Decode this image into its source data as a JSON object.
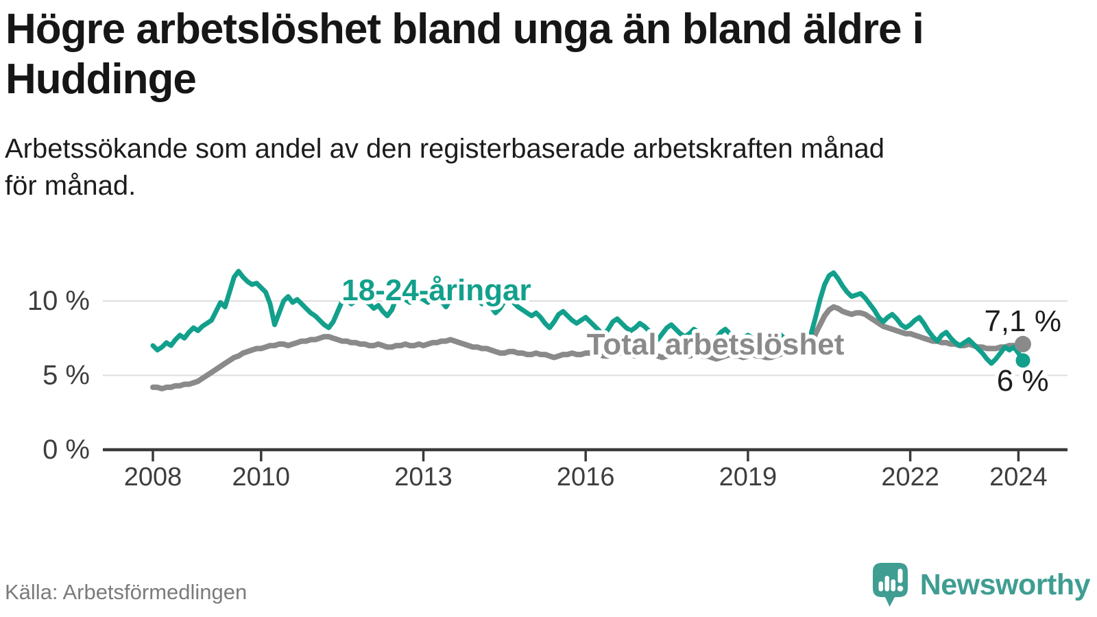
{
  "chart_data": {
    "type": "line",
    "title": "Högre arbetslöshet bland unga än bland äldre i\nHuddinge",
    "subtitle": "Arbetssökande som andel av den registerbaserade arbetskraften månad\nför månad.",
    "frequency": "monthly",
    "x_start": "2008-01",
    "x_end": "2024-02",
    "xlim": [
      2007.1,
      2024.9
    ],
    "ylim": [
      0,
      12.5
    ],
    "grid": "horizontal-only",
    "legend_position": "inline-labels",
    "y_ticks": [
      {
        "value": 0,
        "label": "0 %"
      },
      {
        "value": 5,
        "label": "5 %"
      },
      {
        "value": 10,
        "label": "10 %"
      }
    ],
    "x_ticks": [
      2008,
      2010,
      2013,
      2016,
      2019,
      2022,
      2024
    ],
    "series": [
      {
        "id": "youth",
        "name": "18-24-åringar",
        "color": "#12a08c",
        "end_value": 6.0,
        "end_label": "6 %",
        "values": [
          7.0,
          6.7,
          6.9,
          7.2,
          7.0,
          7.4,
          7.7,
          7.5,
          7.9,
          8.2,
          8.0,
          8.3,
          8.5,
          8.7,
          9.3,
          9.9,
          9.6,
          10.6,
          11.6,
          12.0,
          11.6,
          11.3,
          11.1,
          11.2,
          10.9,
          10.6,
          9.8,
          8.4,
          9.2,
          10.0,
          10.3,
          9.9,
          10.1,
          9.8,
          9.5,
          9.2,
          9.0,
          8.7,
          8.4,
          8.2,
          8.6,
          9.3,
          10.0,
          10.1,
          9.8,
          10.0,
          10.2,
          10.0,
          9.8,
          9.5,
          9.7,
          9.3,
          9.0,
          9.4,
          10.2,
          10.4,
          10.1,
          9.9,
          10.1,
          10.3,
          10.1,
          9.9,
          10.2,
          10.4,
          10.0,
          9.6,
          10.1,
          10.5,
          10.7,
          10.4,
          10.1,
          10.3,
          10.1,
          9.8,
          10.0,
          9.6,
          9.2,
          9.5,
          10.0,
          10.2,
          9.9,
          9.6,
          9.4,
          9.2,
          9.0,
          9.2,
          8.9,
          8.5,
          8.2,
          8.6,
          9.1,
          9.3,
          9.0,
          8.7,
          8.5,
          8.7,
          8.9,
          8.6,
          8.3,
          8.0,
          7.7,
          8.1,
          8.6,
          8.8,
          8.5,
          8.2,
          8.0,
          8.2,
          8.5,
          8.3,
          8.0,
          7.7,
          7.4,
          7.8,
          8.2,
          8.4,
          8.1,
          7.8,
          7.6,
          7.8,
          8.1,
          7.9,
          7.6,
          7.4,
          7.1,
          7.5,
          7.9,
          8.1,
          7.8,
          7.5,
          7.3,
          7.5,
          7.7,
          7.5,
          7.3,
          7.1,
          6.9,
          7.2,
          7.6,
          7.8,
          7.5,
          7.3,
          7.4,
          7.5,
          7.6,
          7.5,
          7.8,
          8.9,
          10.1,
          11.1,
          11.7,
          11.9,
          11.5,
          11.0,
          10.6,
          10.3,
          10.4,
          10.5,
          10.2,
          9.8,
          9.4,
          8.9,
          8.6,
          8.9,
          9.1,
          8.8,
          8.4,
          8.2,
          8.4,
          8.7,
          8.9,
          8.5,
          8.0,
          7.6,
          7.3,
          7.7,
          7.9,
          7.5,
          7.2,
          7.0,
          7.2,
          7.4,
          7.1,
          6.8,
          6.5,
          6.1,
          5.8,
          6.1,
          6.5,
          6.9,
          6.7,
          6.9,
          6.5,
          6.0
        ]
      },
      {
        "id": "total",
        "name": "Total arbetslöshet",
        "color": "#8a8a8a",
        "end_value": 7.1,
        "end_label": "7,1 %",
        "values": [
          4.2,
          4.2,
          4.1,
          4.2,
          4.2,
          4.3,
          4.3,
          4.4,
          4.4,
          4.5,
          4.6,
          4.8,
          5.0,
          5.2,
          5.4,
          5.6,
          5.8,
          6.0,
          6.2,
          6.3,
          6.5,
          6.6,
          6.7,
          6.8,
          6.8,
          6.9,
          7.0,
          7.0,
          7.1,
          7.1,
          7.0,
          7.1,
          7.2,
          7.3,
          7.3,
          7.4,
          7.4,
          7.5,
          7.6,
          7.6,
          7.5,
          7.4,
          7.3,
          7.3,
          7.2,
          7.2,
          7.1,
          7.1,
          7.0,
          7.0,
          7.1,
          7.0,
          6.9,
          6.9,
          7.0,
          7.0,
          7.1,
          7.0,
          7.0,
          7.1,
          7.0,
          7.1,
          7.2,
          7.2,
          7.3,
          7.3,
          7.4,
          7.3,
          7.2,
          7.1,
          7.0,
          6.9,
          6.9,
          6.8,
          6.8,
          6.7,
          6.6,
          6.5,
          6.5,
          6.6,
          6.6,
          6.5,
          6.5,
          6.4,
          6.4,
          6.5,
          6.4,
          6.4,
          6.3,
          6.2,
          6.3,
          6.4,
          6.4,
          6.5,
          6.4,
          6.4,
          6.5,
          6.5,
          6.4,
          6.4,
          6.3,
          6.3,
          6.4,
          6.5,
          6.5,
          6.4,
          6.4,
          6.3,
          6.4,
          6.5,
          6.4,
          6.4,
          6.3,
          6.2,
          6.3,
          6.4,
          6.5,
          6.4,
          6.4,
          6.3,
          6.4,
          6.4,
          6.3,
          6.3,
          6.2,
          6.1,
          6.2,
          6.3,
          6.4,
          6.3,
          6.3,
          6.2,
          6.3,
          6.4,
          6.3,
          6.3,
          6.2,
          6.2,
          6.3,
          6.4,
          6.5,
          6.5,
          6.5,
          6.6,
          6.7,
          6.8,
          7.0,
          7.8,
          8.4,
          9.0,
          9.4,
          9.6,
          9.5,
          9.3,
          9.2,
          9.1,
          9.2,
          9.2,
          9.1,
          8.9,
          8.7,
          8.5,
          8.3,
          8.2,
          8.1,
          8.0,
          7.9,
          7.8,
          7.8,
          7.7,
          7.6,
          7.5,
          7.4,
          7.3,
          7.3,
          7.2,
          7.2,
          7.1,
          7.1,
          7.0,
          7.0,
          7.1,
          7.0,
          6.9,
          6.9,
          6.8,
          6.8,
          6.8,
          6.9,
          6.9,
          7.0,
          7.0,
          7.0,
          7.1
        ]
      }
    ],
    "annotations": [
      {
        "kind": "series-label",
        "text": "18-24-åringar",
        "x": 2013.24,
        "y": 10.74,
        "color": "#12a08c"
      },
      {
        "kind": "series-label",
        "text": "Total arbetslöshet",
        "x": 2018.4,
        "y": 7.1,
        "color": "#8a8a8a"
      },
      {
        "kind": "value-label",
        "text": "7,1 %",
        "x": 2024.08,
        "y": 8.66,
        "color": "#1d1d1d"
      },
      {
        "kind": "value-label",
        "text": "6 %",
        "x": 2024.08,
        "y": 4.65,
        "color": "#1d1d1d"
      }
    ]
  },
  "footer": {
    "source": "Källa: Arbetsförmedlingen",
    "brand": "Newsworthy"
  }
}
